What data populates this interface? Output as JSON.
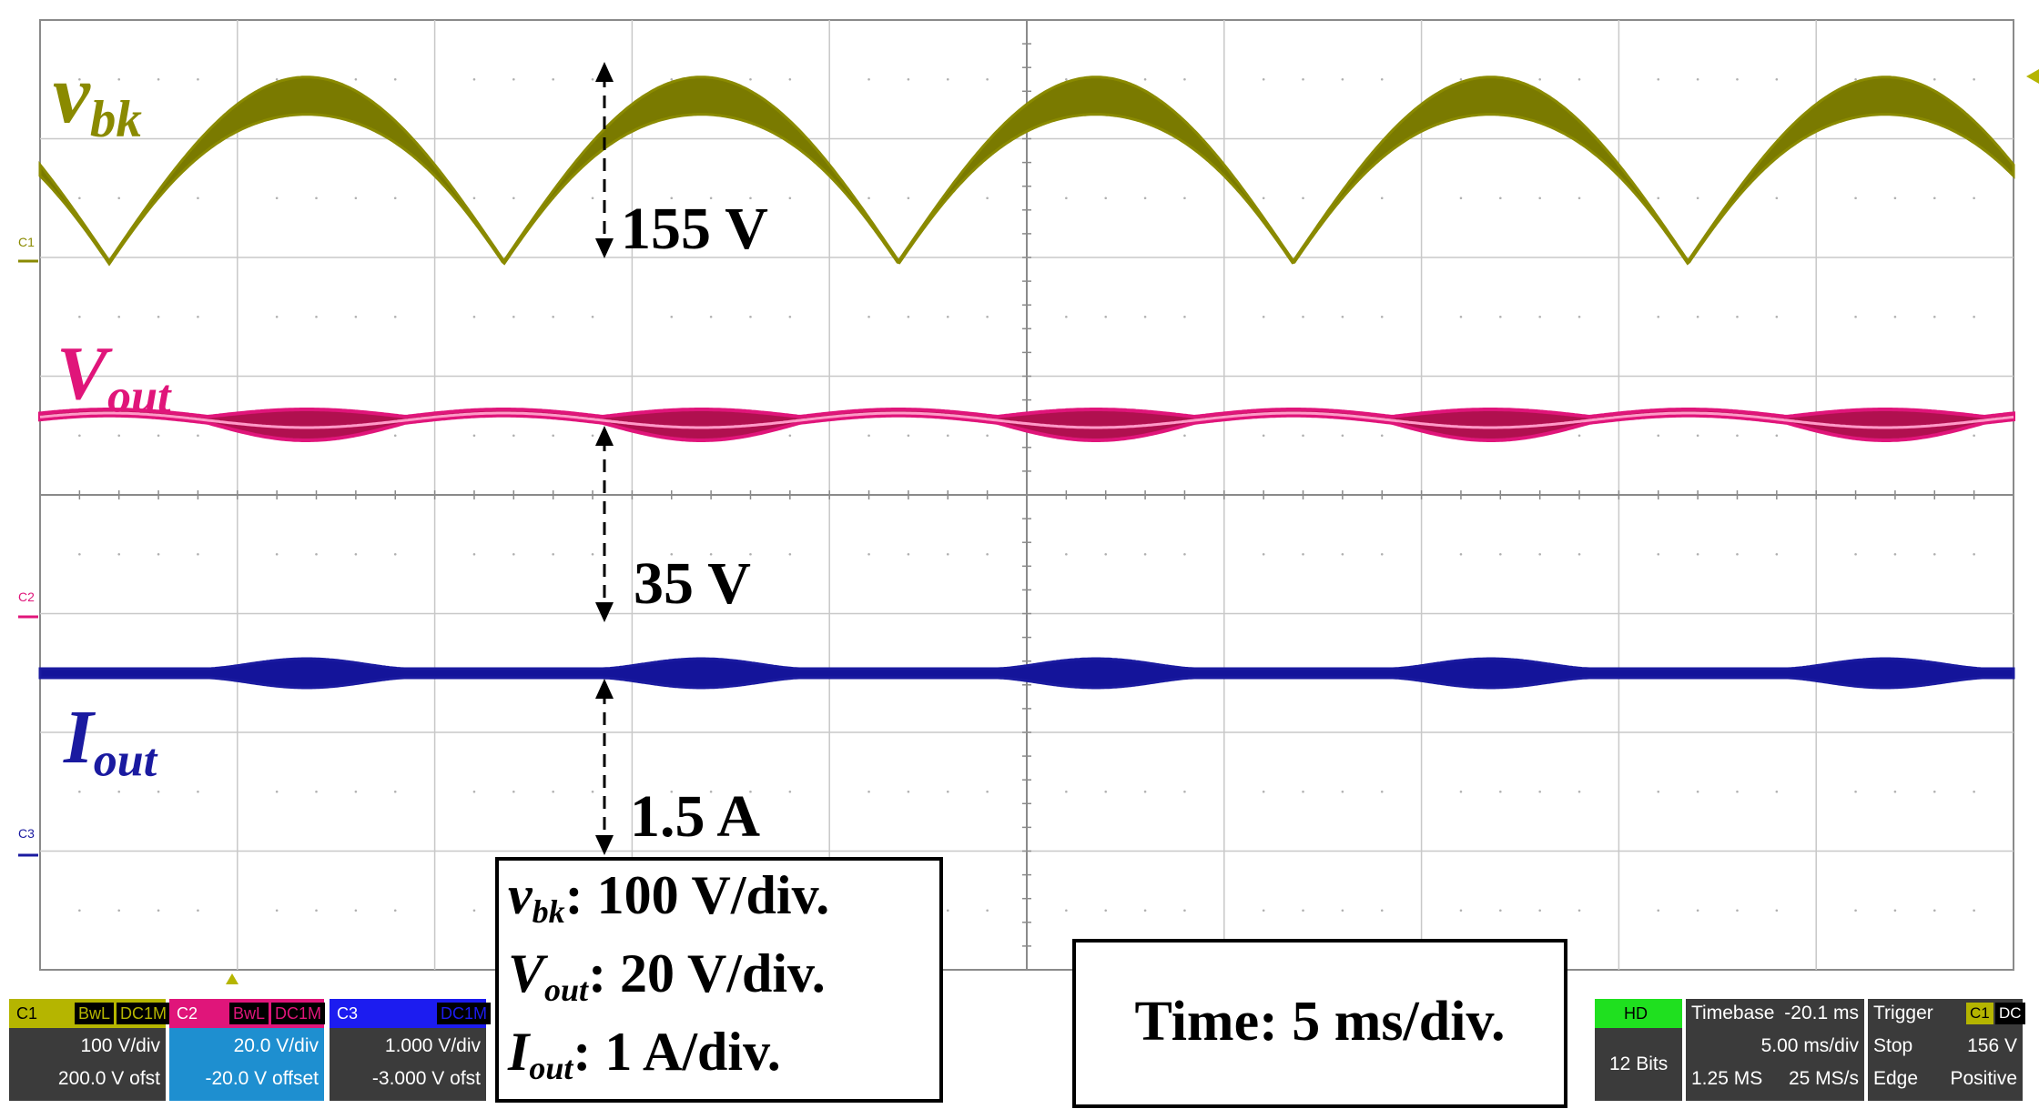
{
  "traces": {
    "vbk": {
      "symbol": "v",
      "sub": "bk",
      "color": "#8a8a00"
    },
    "vout": {
      "symbol": "V",
      "sub": "out",
      "color": "#e0157a"
    },
    "iout": {
      "symbol": "I",
      "sub": "out",
      "color": "#1a1aa0"
    }
  },
  "annotations": {
    "vbk_peak": "155 V",
    "vout_level": "35 V",
    "iout_level": "1.5 A"
  },
  "scale_box": {
    "vbk_scale": ": 100 V/div.",
    "vout_scale": ": 20 V/div.",
    "iout_scale": ": 1 A/div."
  },
  "time_box": {
    "text": "Time: 5 ms/div."
  },
  "channel_markers": {
    "c1": "C1",
    "c2": "C2",
    "c3": "C3"
  },
  "channels": [
    {
      "name": "C1",
      "tag1": "BwL",
      "tag2": "DC1M",
      "scale": "100 V/div",
      "offset": "200.0 V ofst",
      "color": "#b5b500"
    },
    {
      "name": "C2",
      "tag1": "BwL",
      "tag2": "DC1M",
      "scale": "20.0 V/div",
      "offset": "-20.0 V offset",
      "color": "#e0157a"
    },
    {
      "name": "C3",
      "tag1": "",
      "tag2": "DC1M",
      "scale": "1.000 V/div",
      "offset": "-3.000 V ofst",
      "color": "#1c1cf0"
    }
  ],
  "acquisition": {
    "mode": "HD",
    "bits": "12 Bits"
  },
  "timebase": {
    "label": "Timebase",
    "value": "-20.1 ms",
    "per_div": "5.00 ms/div",
    "samples": "1.25 MS",
    "rate": "25 MS/s"
  },
  "trigger": {
    "label": "Trigger",
    "source": "C1",
    "coupling": "DC",
    "mode": "Stop",
    "level": "156 V",
    "type": "Edge",
    "slope": "Positive"
  },
  "chart_data": {
    "type": "line",
    "xlabel": "time",
    "time_per_div_ms": 5,
    "divisions": 10,
    "series": [
      {
        "name": "v_bk",
        "description": "rectified sine",
        "peak_V": 155,
        "scale_V_per_div": 100,
        "period_ms": 10
      },
      {
        "name": "V_out",
        "description": "dc with ripple",
        "level_V": 35,
        "scale_V_per_div": 20,
        "ripple_period_ms": 10
      },
      {
        "name": "I_out",
        "description": "dc with ripple",
        "level_A": 1.5,
        "scale_A_per_div": 1,
        "ripple_period_ms": 10
      }
    ]
  }
}
